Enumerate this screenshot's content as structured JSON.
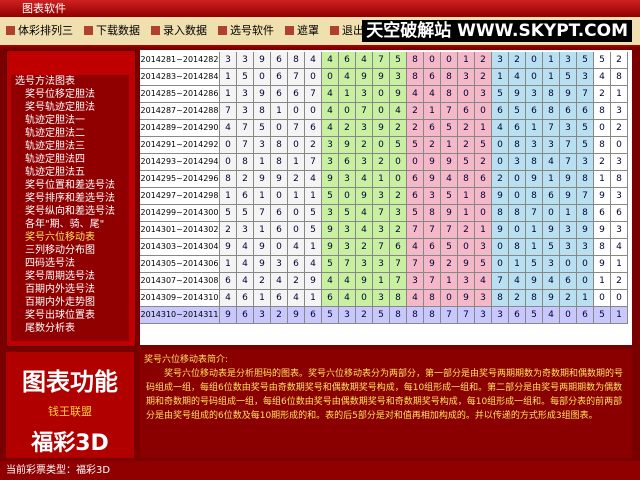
{
  "window": {
    "title": "图表软件"
  },
  "toolbar": {
    "buttons": [
      "体彩排列三",
      "下载数据",
      "录入数据",
      "选号软件",
      "遮罩",
      "退出"
    ],
    "banner": "天空破解站 WWW.SKYPT.COM"
  },
  "tree": {
    "items": [
      "选号方法图表",
      "奖号位移定胆法",
      "奖号轨迹定胆法",
      "轨迹定胆法一",
      "轨迹定胆法二",
      "轨迹定胆法三",
      "轨迹定胆法四",
      "轨迹定胆法五",
      "奖号位置和差选号法",
      "奖号排序和差选号法",
      "奖号纵向和差选号法",
      "各年\"期、骑、尾\"",
      "奖号六位移动表",
      "三列移动分布图",
      "四码选号法",
      "奖号周期选号法",
      "百期内外选号法",
      "百期内外走势图",
      "奖号出球位置表",
      "尾数分析表"
    ]
  },
  "table": {
    "rows": [
      {
        "period": "2014281~2014282",
        "digits": [
          3,
          3,
          9,
          6,
          8,
          4,
          4,
          6,
          4,
          7,
          5,
          8,
          0,
          0,
          1,
          2,
          3,
          2,
          0,
          1,
          3,
          5,
          5,
          2
        ]
      },
      {
        "period": "2014283~2014284",
        "digits": [
          1,
          5,
          0,
          6,
          7,
          0,
          0,
          4,
          9,
          9,
          3,
          8,
          6,
          8,
          3,
          2,
          1,
          4,
          0,
          1,
          5,
          3,
          4,
          8
        ]
      },
      {
        "period": "2014285~2014286",
        "digits": [
          1,
          3,
          9,
          6,
          6,
          7,
          4,
          1,
          3,
          0,
          9,
          4,
          4,
          8,
          0,
          3,
          5,
          9,
          3,
          8,
          9,
          7,
          2,
          1
        ]
      },
      {
        "period": "2014287~2014288",
        "digits": [
          7,
          3,
          8,
          1,
          0,
          0,
          4,
          0,
          7,
          0,
          4,
          2,
          1,
          7,
          6,
          0,
          6,
          5,
          6,
          8,
          6,
          6,
          8,
          3
        ]
      },
      {
        "period": "2014289~2014290",
        "digits": [
          4,
          7,
          5,
          0,
          7,
          6,
          4,
          2,
          3,
          9,
          2,
          2,
          6,
          5,
          2,
          1,
          4,
          6,
          1,
          7,
          3,
          5,
          0,
          2
        ]
      },
      {
        "period": "2014291~2014292",
        "digits": [
          0,
          7,
          3,
          8,
          0,
          2,
          3,
          9,
          2,
          0,
          5,
          5,
          2,
          1,
          2,
          5,
          0,
          8,
          3,
          3,
          7,
          5,
          8,
          0
        ]
      },
      {
        "period": "2014293~2014294",
        "digits": [
          0,
          8,
          1,
          8,
          1,
          7,
          3,
          6,
          3,
          2,
          0,
          0,
          9,
          9,
          5,
          2,
          0,
          3,
          8,
          4,
          7,
          3,
          2,
          3
        ]
      },
      {
        "period": "2014295~2014296",
        "digits": [
          8,
          2,
          9,
          9,
          2,
          4,
          9,
          3,
          4,
          1,
          0,
          6,
          9,
          4,
          8,
          6,
          2,
          0,
          9,
          1,
          9,
          8,
          1,
          8
        ]
      },
      {
        "period": "2014297~2014298",
        "digits": [
          1,
          6,
          1,
          0,
          1,
          1,
          5,
          0,
          9,
          3,
          2,
          6,
          3,
          5,
          1,
          8,
          9,
          0,
          8,
          6,
          9,
          7,
          9,
          3
        ]
      },
      {
        "period": "2014299~2014300",
        "digits": [
          5,
          5,
          7,
          6,
          0,
          5,
          3,
          5,
          4,
          7,
          3,
          5,
          8,
          9,
          1,
          0,
          8,
          8,
          7,
          0,
          1,
          8,
          6,
          6
        ]
      },
      {
        "period": "2014301~2014302",
        "digits": [
          2,
          3,
          1,
          6,
          0,
          5,
          9,
          3,
          4,
          3,
          2,
          7,
          7,
          7,
          2,
          1,
          9,
          0,
          1,
          9,
          3,
          9,
          9,
          3
        ]
      },
      {
        "period": "2014303~2014304",
        "digits": [
          9,
          4,
          9,
          0,
          4,
          1,
          9,
          3,
          2,
          7,
          6,
          4,
          6,
          5,
          0,
          3,
          0,
          8,
          1,
          5,
          3,
          3,
          8,
          4
        ]
      },
      {
        "period": "2014305~2014306",
        "digits": [
          1,
          4,
          9,
          3,
          6,
          4,
          5,
          7,
          3,
          3,
          7,
          7,
          9,
          2,
          9,
          5,
          0,
          1,
          5,
          3,
          0,
          0,
          9,
          1
        ]
      },
      {
        "period": "2014307~2014308",
        "digits": [
          6,
          4,
          2,
          4,
          2,
          9,
          4,
          4,
          9,
          1,
          7,
          3,
          7,
          1,
          3,
          4,
          7,
          4,
          9,
          4,
          6,
          0,
          1,
          2
        ]
      },
      {
        "period": "2014309~2014310",
        "digits": [
          4,
          6,
          1,
          6,
          4,
          1,
          6,
          4,
          0,
          3,
          8,
          4,
          8,
          0,
          9,
          3,
          8,
          2,
          8,
          9,
          2,
          1,
          0,
          0
        ]
      },
      {
        "period": "2014310~2014311",
        "digits": [
          9,
          6,
          3,
          2,
          9,
          6,
          5,
          3,
          2,
          5,
          8,
          8,
          8,
          7,
          7,
          3,
          3,
          6,
          5,
          4,
          0,
          6,
          5,
          1
        ]
      }
    ]
  },
  "description": {
    "title": "奖号六位移动表简介:",
    "text": "奖号六位移动表是分析胆码的图表。奖号六位移动表分为两部分，第一部分是由奖号两期期数为奇数期和偶数期的号码组成一组，每组6位数由奖号由奇数期奖号和偶数期奖号构成，每10组形成一组和。第二部分是由奖号两期期数为偶数期和奇数期的号码组成一组，每组6位数由奖号由偶数期奖号和奇数期奖号构成，每10组形成一组和。每部分表的前两部分是由奖号组成的6位数及每10期形成的和。表的后5部分是对和值再相加构成的。并以传递的方式形成3组图表。"
  },
  "logo": {
    "title": "图表功能",
    "subtitle": "钱王联盟",
    "product": "福彩3D"
  },
  "status": {
    "text": "当前彩票类型：福彩3D"
  }
}
